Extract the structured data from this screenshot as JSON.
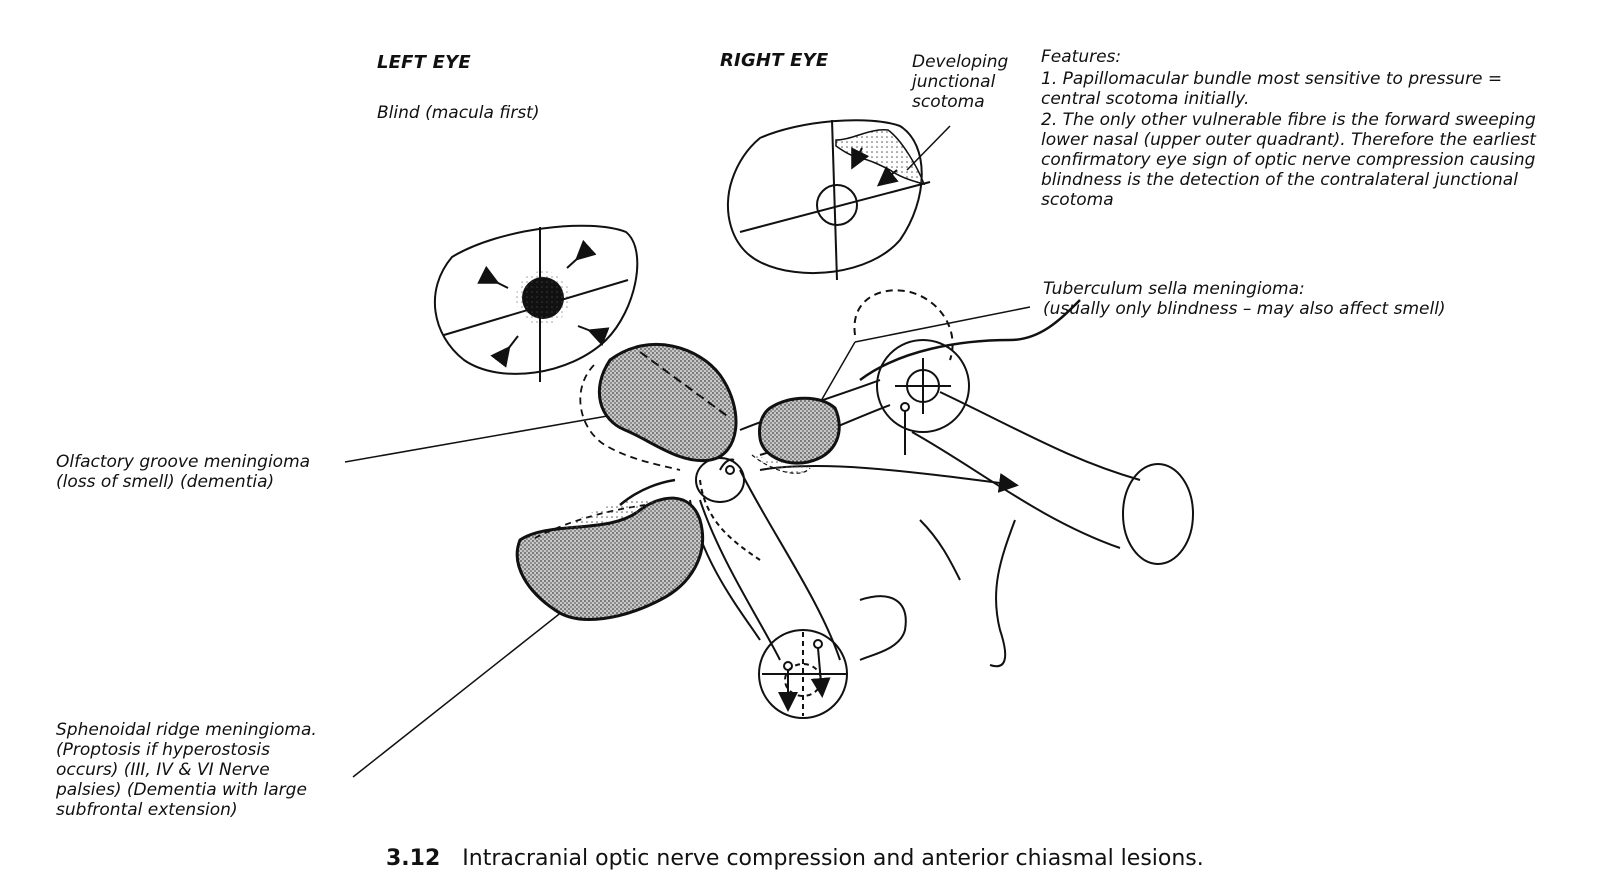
{
  "left_eye": {
    "title": "LEFT EYE",
    "subtitle": "Blind (macula first)"
  },
  "right_eye": {
    "title": "RIGHT EYE"
  },
  "developing_scotoma": "Developing\njunctional\nscotoma",
  "features": {
    "heading": "Features:",
    "item1": "1.  Papillomacular bundle most sensitive to pressure =\ncentral scotoma initially.",
    "item2": "2.  The only other vulnerable fibre is the forward sweeping\nlower nasal (upper outer quadrant).  Therefore the earliest\nconfirmatory eye sign of optic nerve compression causing\nblindness is the detection of the contralateral junctional\nscotoma"
  },
  "tuberculum": "Tuberculum sella meningioma:\n(usually only blindness – may also affect smell)",
  "olfactory": "Olfactory groove meningioma\n(loss of smell) (dementia)",
  "sphenoidal": "Sphenoidal ridge meningioma.\n(Proptosis if hyperostosis\noccurs) (III, IV & VI Nerve\npalsies) (Dementia with large\nsubfrontal extension)",
  "caption": {
    "number": "3.12",
    "text": "Intracranial optic nerve compression and anterior chiasmal lesions."
  }
}
